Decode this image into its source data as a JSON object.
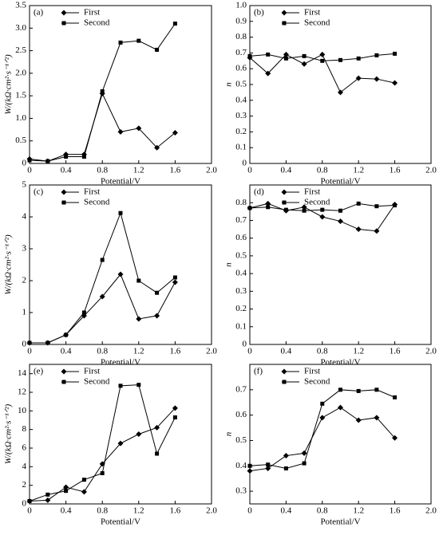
{
  "chart_data": [
    {
      "type": "line",
      "panel_label": "(a)",
      "x_label": "Potential/V",
      "y_label": "W/(kΩ·cm²·s⁻¹ᐟ²)",
      "x": [
        0,
        0.2,
        0.4,
        0.6,
        0.8,
        1.0,
        1.2,
        1.4,
        1.6
      ],
      "series": [
        {
          "name": "First",
          "color": "#000000",
          "marker": "diamond",
          "values": [
            0.1,
            0.05,
            0.2,
            0.2,
            1.55,
            0.7,
            0.78,
            0.35,
            0.68
          ]
        },
        {
          "name": "Second",
          "color": "#000000",
          "marker": "square",
          "values": [
            0.07,
            0.05,
            0.15,
            0.15,
            1.6,
            2.68,
            2.72,
            2.52,
            3.1
          ]
        }
      ],
      "xlim": [
        0,
        2
      ],
      "xticks": [
        0,
        0.4,
        0.8,
        1.2,
        1.6,
        {
          "value": 2,
          "label": "2.0"
        }
      ],
      "ylim": [
        0,
        3.5
      ],
      "yticks": [
        0,
        0.5,
        {
          "value": 1,
          "label": "1.0"
        },
        1.5,
        {
          "value": 2,
          "label": "2.0"
        },
        2.5,
        {
          "value": 3,
          "label": "3.0"
        },
        3.5
      ]
    },
    {
      "type": "line",
      "panel_label": "(b)",
      "x_label": "Potential/V",
      "y_label": "n",
      "x": [
        0,
        0.2,
        0.4,
        0.6,
        0.8,
        1.0,
        1.2,
        1.4,
        1.6
      ],
      "series": [
        {
          "name": "First",
          "color": "#000000",
          "marker": "diamond",
          "values": [
            0.67,
            0.57,
            0.69,
            0.63,
            0.69,
            0.45,
            0.54,
            0.535,
            0.51
          ]
        },
        {
          "name": "Second",
          "color": "#000000",
          "marker": "square",
          "values": [
            0.68,
            0.69,
            0.665,
            0.68,
            0.65,
            0.655,
            0.665,
            0.685,
            0.695
          ]
        }
      ],
      "xlim": [
        0,
        2
      ],
      "xticks": [
        0,
        0.4,
        0.8,
        1.2,
        1.6,
        {
          "value": 2,
          "label": "2.0"
        }
      ],
      "ylim": [
        0,
        1
      ],
      "yticks": [
        0,
        0.1,
        0.2,
        0.3,
        0.4,
        0.5,
        0.6,
        0.7,
        0.8,
        0.9,
        {
          "value": 1,
          "label": "1.0"
        }
      ]
    },
    {
      "type": "line",
      "panel_label": "(c)",
      "x_label": "Potential/V",
      "y_label": "W/(kΩ·cm²·s⁻¹ᐟ²)",
      "x": [
        0,
        0.2,
        0.4,
        0.6,
        0.8,
        1.0,
        1.2,
        1.4,
        1.6
      ],
      "series": [
        {
          "name": "First",
          "color": "#000000",
          "marker": "diamond",
          "values": [
            0.05,
            0.05,
            0.3,
            0.9,
            1.5,
            2.2,
            0.8,
            0.9,
            1.95
          ]
        },
        {
          "name": "Second",
          "color": "#000000",
          "marker": "square",
          "values": [
            0.05,
            0.05,
            0.3,
            1.0,
            2.65,
            4.12,
            2.0,
            1.62,
            2.1
          ]
        }
      ],
      "xlim": [
        0,
        2
      ],
      "xticks": [
        0,
        0.4,
        0.8,
        1.2,
        1.6,
        {
          "value": 2,
          "label": "2.0"
        }
      ],
      "ylim": [
        0,
        5
      ],
      "yticks": [
        0,
        1,
        2,
        3,
        4,
        5
      ]
    },
    {
      "type": "line",
      "panel_label": "(d)",
      "x_label": "Potential/V",
      "y_label": "n",
      "x": [
        0,
        0.2,
        0.4,
        0.6,
        0.8,
        1.0,
        1.2,
        1.4,
        1.6
      ],
      "series": [
        {
          "name": "First",
          "color": "#000000",
          "marker": "diamond",
          "values": [
            0.77,
            0.795,
            0.755,
            0.775,
            0.72,
            0.695,
            0.65,
            0.64,
            0.79
          ]
        },
        {
          "name": "Second",
          "color": "#000000",
          "marker": "square",
          "values": [
            0.77,
            0.775,
            0.76,
            0.755,
            0.76,
            0.755,
            0.795,
            0.78,
            0.785
          ]
        }
      ],
      "xlim": [
        0,
        2
      ],
      "xticks": [
        0,
        0.4,
        0.8,
        1.2,
        1.6,
        {
          "value": 2,
          "label": "2.0"
        }
      ],
      "ylim": [
        0,
        0.9
      ],
      "yticks": [
        0,
        0.1,
        0.2,
        0.3,
        0.4,
        0.5,
        0.6,
        0.7,
        0.8
      ]
    },
    {
      "type": "line",
      "panel_label": "(e)",
      "x_label": "Potential/V",
      "y_label": "W/(kΩ·cm²·s⁻¹ᐟ²)",
      "x": [
        0,
        0.2,
        0.4,
        0.6,
        0.8,
        1.0,
        1.2,
        1.4,
        1.6
      ],
      "series": [
        {
          "name": "First",
          "color": "#000000",
          "marker": "diamond",
          "values": [
            0.3,
            0.4,
            1.8,
            1.3,
            4.3,
            6.5,
            7.5,
            8.2,
            10.3
          ]
        },
        {
          "name": "Second",
          "color": "#000000",
          "marker": "square",
          "values": [
            0.3,
            1.0,
            1.4,
            2.6,
            3.3,
            12.7,
            12.8,
            5.4,
            9.3
          ]
        }
      ],
      "xlim": [
        0,
        2
      ],
      "xticks": [
        0,
        0.4,
        0.8,
        1.2,
        1.6,
        {
          "value": 2,
          "label": "2.0"
        }
      ],
      "ylim": [
        0,
        15
      ],
      "yticks": [
        0,
        2,
        4,
        6,
        8,
        10,
        12,
        14
      ]
    },
    {
      "type": "line",
      "panel_label": "(f)",
      "x_label": "Potential/V",
      "y_label": "n",
      "x": [
        0,
        0.2,
        0.4,
        0.6,
        0.8,
        1.0,
        1.2,
        1.4,
        1.6
      ],
      "series": [
        {
          "name": "First",
          "color": "#000000",
          "marker": "diamond",
          "values": [
            0.38,
            0.39,
            0.44,
            0.45,
            0.59,
            0.63,
            0.58,
            0.59,
            0.51
          ]
        },
        {
          "name": "Second",
          "color": "#000000",
          "marker": "square",
          "values": [
            0.4,
            0.405,
            0.39,
            0.41,
            0.645,
            0.7,
            0.695,
            0.7,
            0.67
          ]
        }
      ],
      "xlim": [
        0,
        2
      ],
      "xticks": [
        0,
        0.4,
        0.8,
        1.2,
        1.6,
        {
          "value": 2,
          "label": "2.0"
        }
      ],
      "ylim": [
        0.25,
        0.8
      ],
      "yticks": [
        0.3,
        0.4,
        0.5,
        0.6,
        0.7
      ]
    }
  ]
}
